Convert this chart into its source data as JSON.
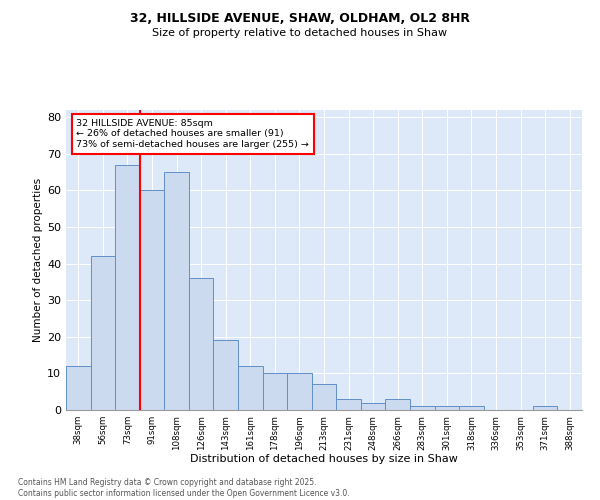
{
  "title_line1": "32, HILLSIDE AVENUE, SHAW, OLDHAM, OL2 8HR",
  "title_line2": "Size of property relative to detached houses in Shaw",
  "xlabel": "Distribution of detached houses by size in Shaw",
  "ylabel": "Number of detached properties",
  "categories": [
    "38sqm",
    "56sqm",
    "73sqm",
    "91sqm",
    "108sqm",
    "126sqm",
    "143sqm",
    "161sqm",
    "178sqm",
    "196sqm",
    "213sqm",
    "231sqm",
    "248sqm",
    "266sqm",
    "283sqm",
    "301sqm",
    "318sqm",
    "336sqm",
    "353sqm",
    "371sqm",
    "388sqm"
  ],
  "values": [
    12,
    42,
    67,
    60,
    65,
    36,
    19,
    12,
    10,
    10,
    7,
    3,
    2,
    3,
    1,
    1,
    1,
    0,
    0,
    1,
    0
  ],
  "bar_color": "#ccdaf0",
  "bar_edge_color": "#6090c8",
  "red_line_x": 2.5,
  "annotation_text": "32 HILLSIDE AVENUE: 85sqm\n← 26% of detached houses are smaller (91)\n73% of semi-detached houses are larger (255) →",
  "annotation_box_color": "white",
  "annotation_box_edge": "red",
  "ylim": [
    0,
    82
  ],
  "yticks": [
    0,
    10,
    20,
    30,
    40,
    50,
    60,
    70,
    80
  ],
  "background_color": "#dde8f8",
  "grid_color": "white",
  "footer_line1": "Contains HM Land Registry data © Crown copyright and database right 2025.",
  "footer_line2": "Contains public sector information licensed under the Open Government Licence v3.0."
}
